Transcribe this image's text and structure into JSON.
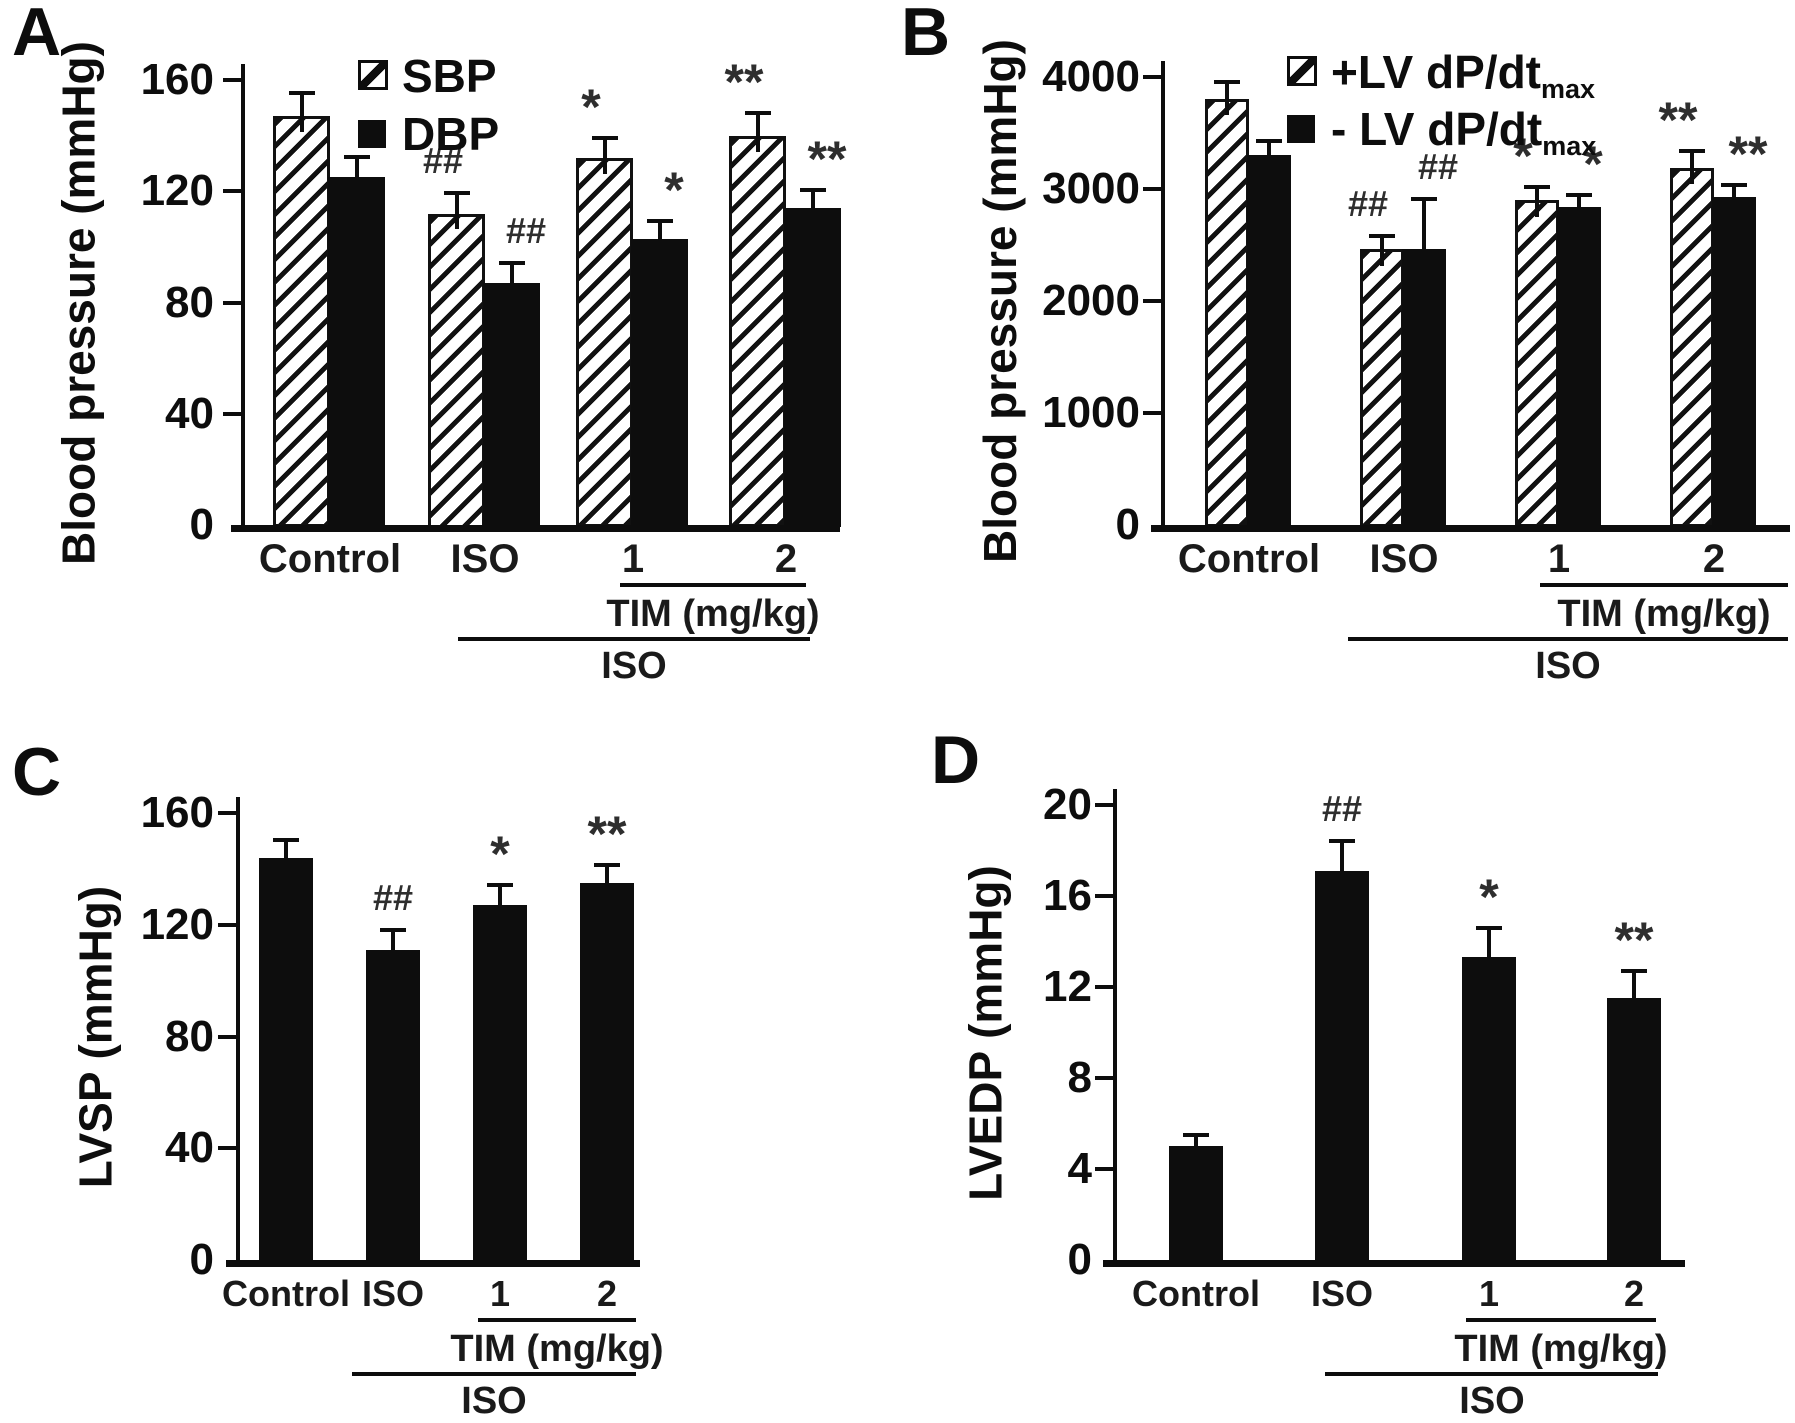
{
  "figure": {
    "background": "#ffffff",
    "ink_color": "#0d0d0d",
    "marker_color": "#2e2e2e"
  },
  "chart_data": [
    {
      "panel": "A",
      "type": "bar",
      "ylabel": "Blood pressure (mmHg)",
      "ylim": [
        0,
        160
      ],
      "yticks": [
        0,
        40,
        80,
        120,
        160
      ],
      "grid": false,
      "legend_position": "top-inside",
      "categories": [
        "Control",
        "ISO",
        "1",
        "2"
      ],
      "series": [
        {
          "name": "SBP",
          "name_sub": "",
          "pattern": "hatched",
          "values": [
            147,
            112,
            132,
            140
          ],
          "errors": [
            9,
            8,
            8,
            9
          ],
          "sig": [
            "",
            "##",
            "*",
            "**"
          ]
        },
        {
          "name": "DBP",
          "name_sub": "",
          "pattern": "solid",
          "values": [
            125,
            87,
            103,
            114
          ],
          "errors": [
            8,
            8,
            7,
            7
          ],
          "sig": [
            "",
            "##",
            "*",
            "**"
          ]
        }
      ],
      "group_bracket_1": {
        "label": "TIM (mg/kg)",
        "covers": [
          "1",
          "2"
        ]
      },
      "group_bracket_2": {
        "label": "ISO",
        "covers": [
          "ISO",
          "1",
          "2"
        ]
      }
    },
    {
      "panel": "B",
      "type": "bar",
      "ylabel": "Blood pressure (mmHg)",
      "ylim": [
        0,
        4000
      ],
      "yticks": [
        0,
        1000,
        2000,
        3000,
        4000
      ],
      "grid": false,
      "legend_position": "top-inside",
      "categories": [
        "Control",
        "ISO",
        "1",
        "2"
      ],
      "series": [
        {
          "name": "+LV dP/dt",
          "name_sub": "max",
          "pattern": "hatched",
          "values": [
            3800,
            2460,
            2900,
            3190
          ],
          "errors": [
            170,
            140,
            140,
            170
          ],
          "sig": [
            "",
            "##",
            "*",
            "**"
          ]
        },
        {
          "name": "- LV dP/dt",
          "name_sub": "max",
          "pattern": "solid",
          "values": [
            3300,
            2460,
            2840,
            2930
          ],
          "errors": [
            150,
            470,
            120,
            120
          ],
          "sig": [
            "",
            "##",
            "*",
            "**"
          ]
        }
      ],
      "group_bracket_1": {
        "label": "TIM (mg/kg)",
        "covers": [
          "1",
          "2"
        ]
      },
      "group_bracket_2": {
        "label": "ISO",
        "covers": [
          "ISO",
          "1",
          "2"
        ]
      }
    },
    {
      "panel": "C",
      "type": "bar",
      "ylabel": "LVSP (mmHg)",
      "ylim": [
        0,
        160
      ],
      "yticks": [
        0,
        40,
        80,
        120,
        160
      ],
      "grid": false,
      "legend_position": "none",
      "categories": [
        "Control",
        "ISO",
        "1",
        "2"
      ],
      "series": [
        {
          "name": "LVSP",
          "name_sub": "",
          "pattern": "solid",
          "values": [
            144,
            111,
            127,
            135
          ],
          "errors": [
            7,
            8,
            8,
            7
          ],
          "sig": [
            "",
            "##",
            "*",
            "**"
          ]
        }
      ],
      "group_bracket_1": {
        "label": "TIM (mg/kg)",
        "covers": [
          "1",
          "2"
        ]
      },
      "group_bracket_2": {
        "label": "ISO",
        "covers": [
          "ISO",
          "1",
          "2"
        ]
      }
    },
    {
      "panel": "D",
      "type": "bar",
      "ylabel": "LVEDP (mmHg)",
      "ylim": [
        0,
        20
      ],
      "yticks": [
        0,
        4,
        8,
        12,
        16,
        20
      ],
      "grid": false,
      "legend_position": "none",
      "categories": [
        "Control",
        "ISO",
        "1",
        "2"
      ],
      "series": [
        {
          "name": "LVEDP",
          "name_sub": "",
          "pattern": "solid",
          "values": [
            5,
            17.1,
            13.3,
            11.5
          ],
          "errors": [
            0.6,
            1.4,
            1.4,
            1.3
          ],
          "sig": [
            "",
            "##",
            "*",
            "**"
          ]
        }
      ],
      "group_bracket_1": {
        "label": "TIM (mg/kg)",
        "covers": [
          "1",
          "2"
        ]
      },
      "group_bracket_2": {
        "label": "ISO",
        "covers": [
          "ISO",
          "1",
          "2"
        ]
      }
    }
  ]
}
